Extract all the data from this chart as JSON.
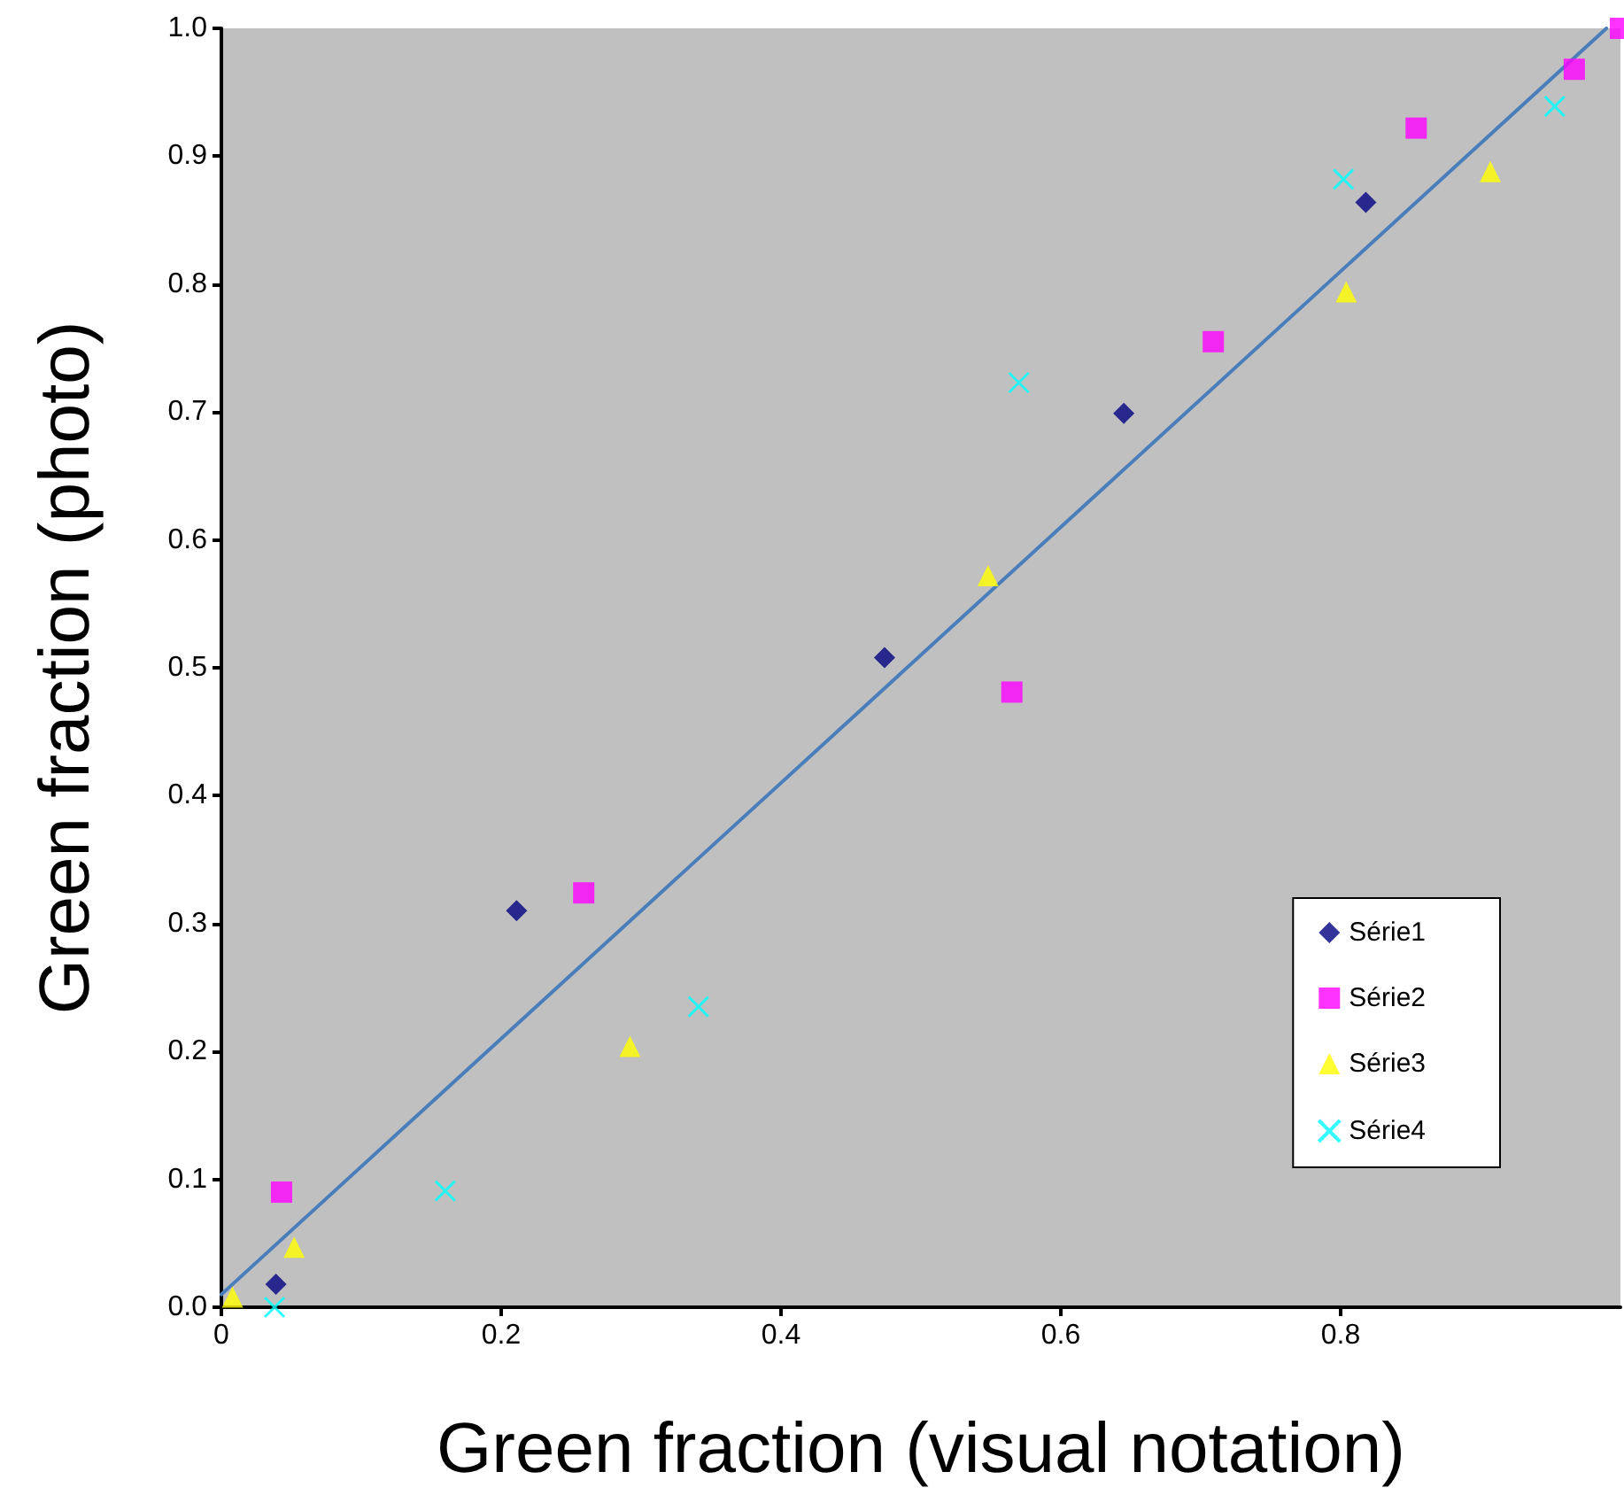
{
  "chart_data": {
    "type": "scatter",
    "xlabel": "Green fraction (visual notation)",
    "ylabel": "Green fraction (photo)",
    "xlim": [
      0,
      1
    ],
    "xticks": [
      0,
      0.2,
      0.4,
      0.6,
      0.8
    ],
    "ylim": [
      0,
      1
    ],
    "yticks": [
      {
        "value": 0,
        "label": "0.0"
      },
      {
        "value": 0.1,
        "label": "0.1"
      },
      {
        "value": 0.2,
        "label": "0.2"
      },
      {
        "value": 0.3,
        "label": "0.3"
      },
      {
        "value": 0.4,
        "label": "0.4"
      },
      {
        "value": 0.5,
        "label": "0.5"
      },
      {
        "value": 0.6,
        "label": "0.6"
      },
      {
        "value": 0.7,
        "label": "0.7"
      },
      {
        "value": 0.8,
        "label": "0.8"
      },
      {
        "value": 0.9,
        "label": "0.9"
      },
      {
        "value": 1,
        "label": "1.0"
      }
    ],
    "grid": false,
    "legend": "bottom right",
    "series": [
      {
        "name": "Série1",
        "color": "#000080",
        "marker": "diamond",
        "x": [
          0.039,
          0.211,
          0.474,
          0.645,
          0.818
        ],
        "values": [
          0.018,
          0.31,
          0.508,
          0.699,
          0.864
        ]
      },
      {
        "name": "Série2",
        "color": "#ff00ff",
        "marker": "square",
        "x": [
          0.043,
          0.259,
          0.565,
          0.709,
          0.854,
          0.967,
          1.0
        ],
        "values": [
          0.09,
          0.324,
          0.481,
          0.755,
          0.922,
          0.968,
          1.0
        ]
      },
      {
        "name": "Série3",
        "color": "#ffff00",
        "marker": "triangle",
        "x": [
          0.008,
          0.052,
          0.292,
          0.548,
          0.804,
          0.907
        ],
        "values": [
          0.008,
          0.047,
          0.204,
          0.572,
          0.794,
          0.888
        ]
      },
      {
        "name": "Série4",
        "color": "#00ffff",
        "marker": "cross",
        "x": [
          0.038,
          0.16,
          0.341,
          0.57,
          0.802,
          0.953
        ],
        "values": [
          0.0,
          0.091,
          0.235,
          0.723,
          0.882,
          0.939
        ]
      },
      {
        "type": "line",
        "color": "#4a7ebb",
        "marker": "none",
        "line_style": "solid",
        "x": [
          0,
          0.99
        ],
        "values": [
          0.01,
          1.0
        ]
      }
    ]
  }
}
